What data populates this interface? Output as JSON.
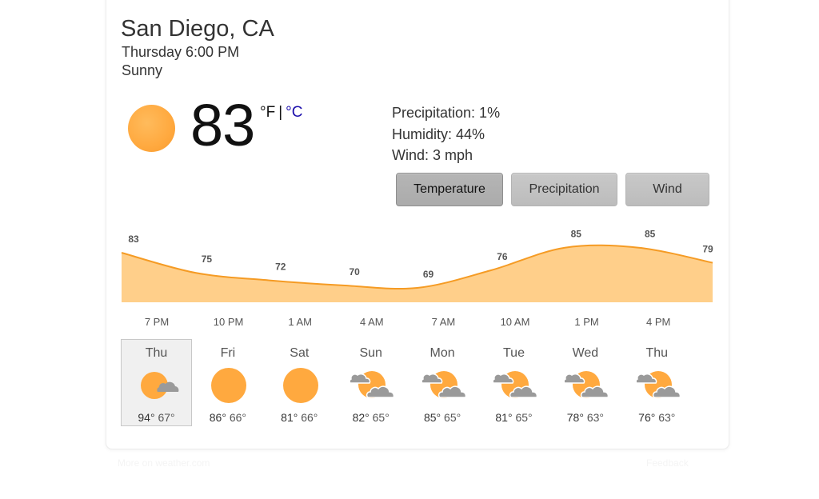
{
  "location": "San Diego, CA",
  "datetime": "Thursday 6:00 PM",
  "condition": "Sunny",
  "current": {
    "temperature": "83",
    "unit_f": "°F",
    "unit_sep": "|",
    "unit_c": "°C",
    "icon": "sun-icon"
  },
  "details": {
    "precipitation": "Precipitation: 1%",
    "humidity": "Humidity: 44%",
    "wind": "Wind: 3 mph"
  },
  "tabs": [
    {
      "label": "Temperature",
      "active": true
    },
    {
      "label": "Precipitation",
      "active": false
    },
    {
      "label": "Wind",
      "active": false
    }
  ],
  "colors": {
    "accent": "#f59b24",
    "fill": "#ffcf8a",
    "sun": "#ffa93f",
    "cloud": "#9a9a9a"
  },
  "chart_data": {
    "type": "area",
    "hourly": [
      {
        "temp": 83,
        "label": "83"
      },
      {
        "temp": 75,
        "label": "75"
      },
      {
        "temp": 72,
        "label": "72"
      },
      {
        "temp": 70,
        "label": "70"
      },
      {
        "temp": 69,
        "label": "69"
      },
      {
        "temp": 76,
        "label": "76"
      },
      {
        "temp": 85,
        "label": "85"
      },
      {
        "temp": 85,
        "label": "85"
      },
      {
        "temp": 79,
        "label": "79"
      }
    ],
    "x_labels": [
      "7 PM",
      "10 PM",
      "1 AM",
      "4 AM",
      "7 AM",
      "10 AM",
      "1 PM",
      "4 PM"
    ]
  },
  "forecast": [
    {
      "day": "Thu",
      "icon": "sun-partly-cloudy-icon",
      "high": "94°",
      "low": "67°",
      "selected": true
    },
    {
      "day": "Fri",
      "icon": "sun-icon",
      "high": "86°",
      "low": "66°",
      "selected": false
    },
    {
      "day": "Sat",
      "icon": "sun-icon",
      "high": "81°",
      "low": "66°",
      "selected": false
    },
    {
      "day": "Sun",
      "icon": "sun-clouds-icon",
      "high": "82°",
      "low": "65°",
      "selected": false
    },
    {
      "day": "Mon",
      "icon": "sun-clouds-icon",
      "high": "85°",
      "low": "65°",
      "selected": false
    },
    {
      "day": "Tue",
      "icon": "sun-clouds-icon",
      "high": "81°",
      "low": "65°",
      "selected": false
    },
    {
      "day": "Wed",
      "icon": "sun-clouds-icon",
      "high": "78°",
      "low": "63°",
      "selected": false
    },
    {
      "day": "Thu",
      "icon": "sun-clouds-icon",
      "high": "76°",
      "low": "63°",
      "selected": false
    }
  ],
  "footer": {
    "more_link": "More on weather.com",
    "feedback_link": "Feedback"
  }
}
